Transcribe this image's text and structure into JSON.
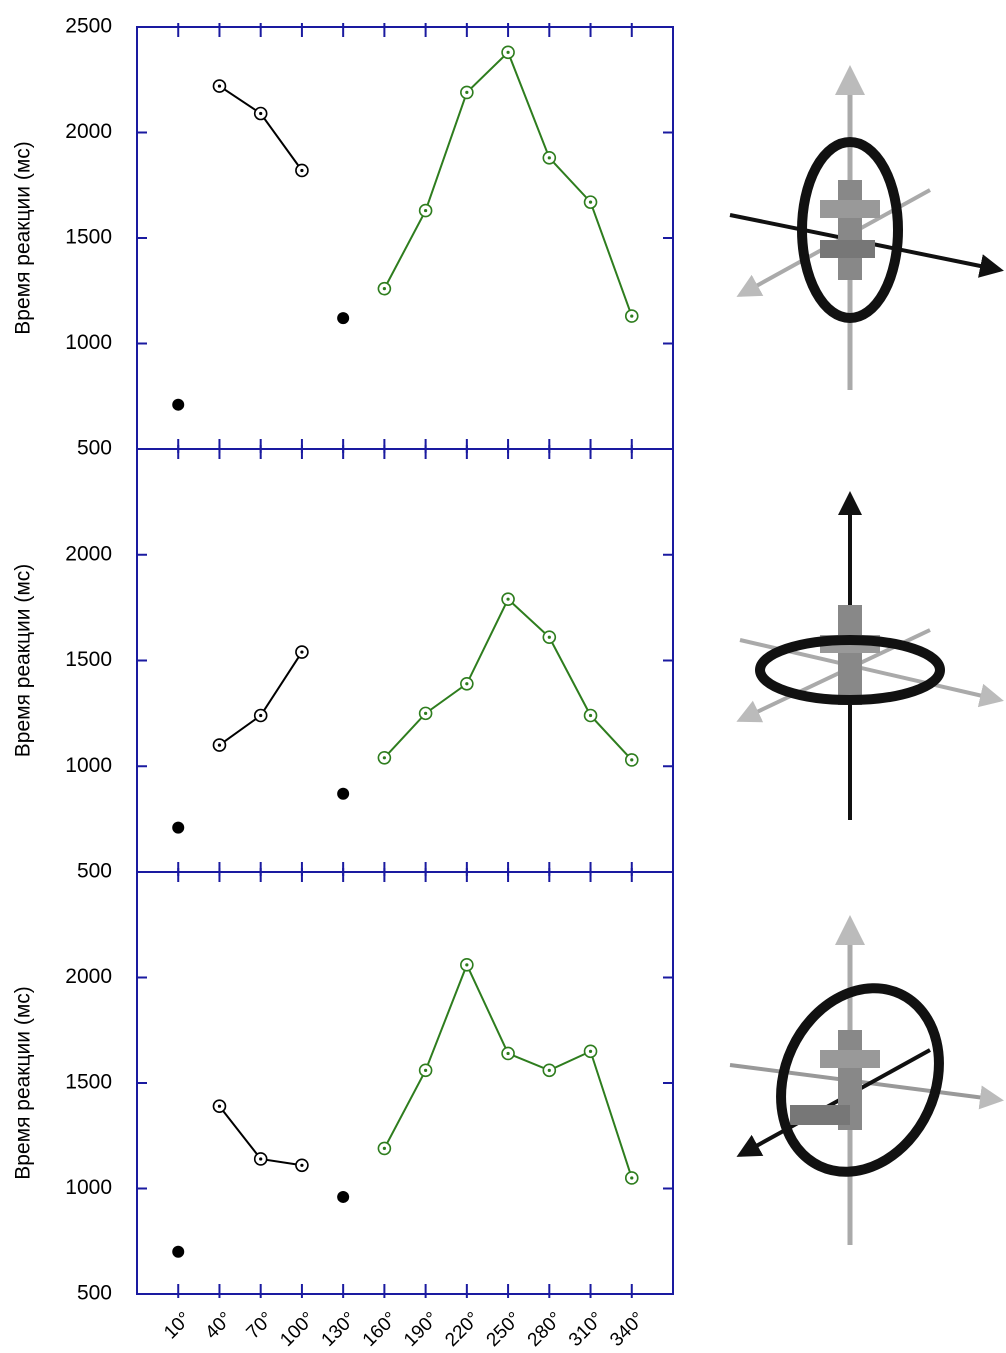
{
  "chart_data": [
    {
      "type": "line",
      "ylabel": "Время реакции (мс)",
      "x": [
        10,
        40,
        70,
        100,
        130,
        160,
        190,
        220,
        250,
        280,
        310,
        340
      ],
      "xlim": [
        -20,
        370
      ],
      "xticks": [
        10,
        40,
        70,
        100,
        130,
        160,
        190,
        220,
        250,
        280,
        310,
        340
      ],
      "ylim": [
        500,
        2500
      ],
      "yticks": [
        500,
        1000,
        1500,
        2000,
        2500
      ],
      "series": [
        {
          "color": "#000000",
          "marker": "filled",
          "line": false,
          "values": [
            710,
            null,
            null,
            null,
            1120,
            null,
            null,
            null,
            null,
            null,
            null,
            null
          ]
        },
        {
          "color": "#000000",
          "marker": "open",
          "line": true,
          "values": [
            null,
            2220,
            2090,
            1820,
            null,
            null,
            null,
            null,
            null,
            null,
            null,
            null
          ]
        },
        {
          "color": "#2e7d1e",
          "marker": "open",
          "line": true,
          "values": [
            null,
            null,
            null,
            null,
            null,
            1260,
            1630,
            2190,
            2380,
            1880,
            1670,
            1130
          ]
        }
      ]
    },
    {
      "type": "line",
      "ylabel": "Время реакции (мс)",
      "x": [
        10,
        40,
        70,
        100,
        130,
        160,
        190,
        220,
        250,
        280,
        310,
        340
      ],
      "xlim": [
        -20,
        370
      ],
      "xticks": [
        10,
        40,
        70,
        100,
        130,
        160,
        190,
        220,
        250,
        280,
        310,
        340
      ],
      "ylim": [
        500,
        2500
      ],
      "yticks": [
        500,
        1000,
        1500,
        2000
      ],
      "series": [
        {
          "color": "#000000",
          "marker": "filled",
          "line": false,
          "values": [
            710,
            null,
            null,
            null,
            870,
            null,
            null,
            null,
            null,
            null,
            null,
            null
          ]
        },
        {
          "color": "#000000",
          "marker": "open",
          "line": true,
          "values": [
            null,
            1100,
            1240,
            1540,
            null,
            null,
            null,
            null,
            null,
            null,
            null,
            null
          ]
        },
        {
          "color": "#2e7d1e",
          "marker": "open",
          "line": true,
          "values": [
            null,
            null,
            null,
            null,
            null,
            1040,
            1250,
            1390,
            1790,
            1610,
            1240,
            1030
          ]
        }
      ]
    },
    {
      "type": "line",
      "ylabel": "Время реакции (мс)",
      "x": [
        10,
        40,
        70,
        100,
        130,
        160,
        190,
        220,
        250,
        280,
        310,
        340
      ],
      "xlim": [
        -20,
        370
      ],
      "xticks": [
        {
          "value": 10,
          "label": "10°"
        },
        {
          "value": 40,
          "label": "40°"
        },
        {
          "value": 70,
          "label": "70°"
        },
        {
          "value": 100,
          "label": "100°"
        },
        {
          "value": 130,
          "label": "130°"
        },
        {
          "value": 160,
          "label": "160°"
        },
        {
          "value": 190,
          "label": "190°"
        },
        {
          "value": 220,
          "label": "220°"
        },
        {
          "value": 250,
          "label": "250°"
        },
        {
          "value": 280,
          "label": "280°"
        },
        {
          "value": 310,
          "label": "310°"
        },
        {
          "value": 340,
          "label": "340°"
        }
      ],
      "ylim": [
        500,
        2500
      ],
      "yticks": [
        500,
        1000,
        1500,
        2000
      ],
      "series": [
        {
          "color": "#000000",
          "marker": "filled",
          "line": false,
          "values": [
            700,
            null,
            null,
            null,
            960,
            null,
            null,
            null,
            null,
            null,
            null,
            null
          ]
        },
        {
          "color": "#000000",
          "marker": "open",
          "line": true,
          "values": [
            null,
            1390,
            1140,
            1110,
            null,
            null,
            null,
            null,
            null,
            null,
            null,
            null
          ]
        },
        {
          "color": "#2e7d1e",
          "marker": "open",
          "line": true,
          "values": [
            null,
            null,
            null,
            null,
            null,
            1190,
            1560,
            2060,
            1640,
            1560,
            1650,
            1050
          ]
        }
      ]
    }
  ]
}
